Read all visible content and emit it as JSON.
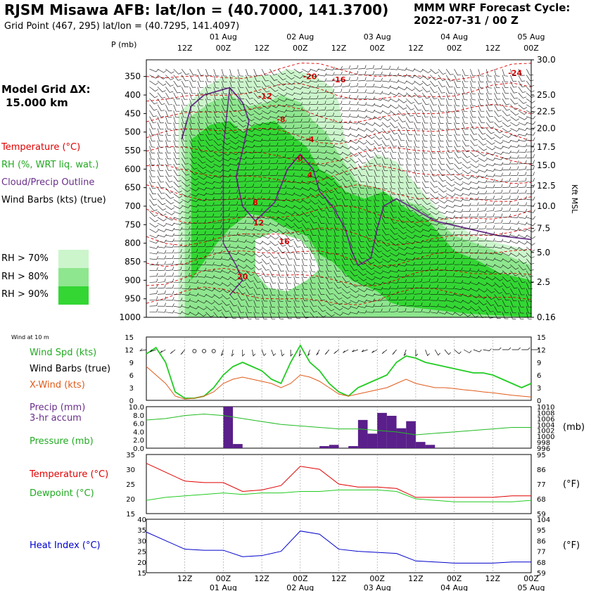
{
  "header": {
    "title": "RJSM Misawa AFB:  lat/lon = (40.7000, 141.3700)",
    "grid_point": "Grid Point (467, 295) lat/lon = (40.7295, 141.4097)",
    "cycle_line1": "MMM WRF Forecast Cycle:",
    "cycle_line2": "2022-07-31 / 00  Z",
    "model_grid_line1": "Model Grid ΔX:",
    "model_grid_line2": "15.000 km"
  },
  "time_axis": {
    "hours": [
      0,
      12,
      24,
      36,
      48,
      60,
      72,
      84,
      96,
      108,
      120
    ],
    "hour_labels": [
      "12Z",
      "00Z",
      "12Z",
      "00Z",
      "12Z",
      "00Z",
      "12Z",
      "00Z",
      "12Z",
      "00Z"
    ],
    "hour_label_positions": [
      12,
      24,
      36,
      48,
      60,
      72,
      84,
      96,
      108,
      120
    ],
    "date_labels": [
      "01 Aug",
      "02 Aug",
      "03 Aug",
      "04 Aug",
      "05 Aug"
    ],
    "date_label_positions": [
      24,
      48,
      72,
      96,
      120
    ],
    "xlim": [
      0,
      120
    ]
  },
  "legend": {
    "temperature": "Temperature (°C)",
    "rh": "RH (%, WRT liq. wat.)",
    "cloud": "Cloud/Precip Outline",
    "barbs": "Wind Barbs (kts) (true)",
    "rh70": "RH > 70%",
    "rh80": "RH > 80%",
    "rh90": "RH > 90%",
    "colors": {
      "rh70": "#ccf5cc",
      "rh80": "#8ee68e",
      "rh90": "#33d633",
      "temp": "#e00000",
      "cloud": "#6a2f8a"
    }
  },
  "panel_labels": {
    "wind_at_10m": "Wind at 10 m",
    "wind_spd": "Wind Spd (kts)",
    "wind_barbs": "Wind Barbs (true)",
    "x_wind": "X-Wind (kts)",
    "precip_1": "Precip (mm)",
    "precip_2": "3-hr accum",
    "pressure": "Pressure (mb)",
    "pressure_unit": "(mb)",
    "temperature": "Temperature (°C)",
    "dewpoint": "Dewpoint (°C)",
    "fahrenheit": "(°F)",
    "heat_index": "Heat Index (°C)",
    "p_axis": "P (mb)",
    "kft": "Kft MSL"
  },
  "chart_data": [
    {
      "type": "heatmap",
      "name_note": "",
      "y_ticks": [
        350,
        400,
        450,
        500,
        550,
        600,
        650,
        700,
        750,
        800,
        850,
        900,
        950,
        1000
      ],
      "y_right_ticks": [
        "30.0",
        "25.0",
        "22.5",
        "20.0",
        "17.5",
        "15.0",
        "12.5",
        "10.0",
        "7.5",
        "5.0",
        "2.5",
        "0.16"
      ],
      "y_right_positions": [
        305,
        400,
        445,
        490,
        540,
        590,
        645,
        700,
        760,
        825,
        905,
        1000
      ],
      "ylim": [
        1000,
        305
      ],
      "temp_labels": [
        {
          "text": "-24",
          "t": 115,
          "p": 340
        },
        {
          "text": "-20",
          "t": 51,
          "p": 350
        },
        {
          "text": "-16",
          "t": 60,
          "p": 358
        },
        {
          "text": "-12",
          "t": 37,
          "p": 403
        },
        {
          "text": "-8",
          "t": 42,
          "p": 465
        },
        {
          "text": "-4",
          "t": 51,
          "p": 520
        },
        {
          "text": "0",
          "t": 48,
          "p": 570
        },
        {
          "text": "4",
          "t": 51,
          "p": 615
        },
        {
          "text": "8",
          "t": 34,
          "p": 690
        },
        {
          "text": "12",
          "t": 35,
          "p": 745
        },
        {
          "text": "16",
          "t": 43,
          "p": 795
        },
        {
          "text": "20",
          "t": 30,
          "p": 890
        }
      ]
    },
    {
      "type": "line",
      "ylim": [
        0,
        15
      ],
      "y_ticks": [
        0,
        3,
        6,
        9,
        12,
        15
      ],
      "x": [
        0,
        3,
        6,
        9,
        12,
        15,
        18,
        21,
        24,
        27,
        30,
        33,
        36,
        39,
        42,
        45,
        48,
        51,
        54,
        57,
        60,
        63,
        66,
        69,
        72,
        75,
        78,
        81,
        84,
        87,
        90,
        93,
        96,
        99,
        102,
        105,
        108,
        111,
        114,
        117,
        120
      ],
      "series": [
        {
          "name": "Wind Spd (kts)",
          "color": "#22cc22",
          "values": [
            11,
            12.5,
            9,
            2,
            0.5,
            0.5,
            1,
            3,
            6,
            8,
            9,
            8,
            7,
            5,
            4,
            9,
            13,
            9,
            7,
            4,
            2,
            1,
            3,
            4,
            5,
            6,
            9,
            10.5,
            10,
            9,
            8.5,
            8,
            7.5,
            7,
            6.5,
            6.5,
            6,
            5,
            4,
            3,
            4
          ]
        },
        {
          "name": "X-Wind (kts)",
          "color": "#e05a1a",
          "values": [
            8,
            6,
            4,
            1,
            0.3,
            0.5,
            1,
            2,
            4,
            5,
            5.5,
            5,
            4.5,
            4,
            3,
            4,
            6,
            5.5,
            4.5,
            3,
            1.5,
            1,
            1.5,
            2,
            2.5,
            3,
            4,
            5,
            4,
            3.5,
            3,
            3,
            2.8,
            2.5,
            2.3,
            2,
            1.8,
            1.5,
            1.2,
            1,
            0.8
          ]
        }
      ],
      "barb_dirs": [
        260,
        250,
        240,
        230,
        220,
        0,
        0,
        0,
        200,
        190,
        180,
        170,
        160,
        160,
        170,
        180,
        190,
        200,
        210,
        220,
        230,
        240,
        250,
        250,
        240,
        230,
        220,
        200,
        180,
        160,
        150,
        140,
        130,
        120,
        110,
        100,
        90,
        90,
        90,
        90,
        90
      ]
    },
    {
      "type": "bar",
      "ylim": [
        0,
        10
      ],
      "y_ticks": [
        "0.0",
        "2.0",
        "4.0",
        "6.0",
        "8.0",
        "10.0"
      ],
      "y_right_ticks": [
        "996",
        "998",
        "1000",
        "1002",
        "1004",
        "1006",
        "1008",
        "1010"
      ],
      "pressure_ylim": [
        996,
        1010
      ],
      "bars": [
        {
          "t": 24,
          "v": 10
        },
        {
          "t": 27,
          "v": 1
        },
        {
          "t": 54,
          "v": 0.5
        },
        {
          "t": 57,
          "v": 0.8
        },
        {
          "t": 63,
          "v": 0.5
        },
        {
          "t": 66,
          "v": 6.8
        },
        {
          "t": 69,
          "v": 3.5
        },
        {
          "t": 72,
          "v": 8.5
        },
        {
          "t": 75,
          "v": 7.8
        },
        {
          "t": 78,
          "v": 4.8
        },
        {
          "t": 81,
          "v": 6.5
        },
        {
          "t": 84,
          "v": 1.5
        },
        {
          "t": 87,
          "v": 0.8
        }
      ],
      "pressure": {
        "name": "Pressure (mb)",
        "color": "#22bb22",
        "x": [
          0,
          6,
          12,
          18,
          24,
          30,
          36,
          42,
          48,
          54,
          60,
          66,
          72,
          78,
          84,
          90,
          96,
          102,
          108,
          114,
          120
        ],
        "values": [
          1005.5,
          1006,
          1007,
          1007.5,
          1007,
          1006,
          1005,
          1004,
          1003.5,
          1003,
          1002.5,
          1002.5,
          1002,
          1001.5,
          1000.5,
          1001,
          1001.5,
          1002,
          1002.5,
          1003,
          1003
        ]
      }
    },
    {
      "type": "line",
      "ylim": [
        15,
        35
      ],
      "y_ticks": [
        15,
        20,
        25,
        30,
        35
      ],
      "y_right_ticks": [
        "59",
        "68",
        "77",
        "86",
        "95"
      ],
      "x": [
        0,
        6,
        12,
        18,
        24,
        30,
        36,
        42,
        48,
        54,
        60,
        66,
        72,
        78,
        84,
        90,
        96,
        102,
        108,
        114,
        120
      ],
      "series": [
        {
          "name": "Temperature (°C)",
          "color": "#e00000",
          "values": [
            32,
            29,
            26,
            25.5,
            25.5,
            22.5,
            23,
            24.5,
            31,
            30,
            25,
            24,
            24,
            23.5,
            20.5,
            20.5,
            20.5,
            20.5,
            20.5,
            21,
            21
          ]
        },
        {
          "name": "Dewpoint (°C)",
          "color": "#22cc22",
          "values": [
            19.5,
            20.5,
            21,
            21.5,
            22,
            21.5,
            22,
            22,
            22.5,
            22.5,
            23,
            23,
            23,
            22.5,
            20,
            19.5,
            19,
            19,
            19,
            19,
            19.5
          ]
        }
      ]
    },
    {
      "type": "line",
      "ylim": [
        15,
        40
      ],
      "y_ticks": [
        15,
        20,
        25,
        30,
        35,
        40
      ],
      "y_right_ticks": [
        "59",
        "68",
        "77",
        "86",
        "95",
        "104"
      ],
      "x": [
        0,
        6,
        12,
        18,
        24,
        30,
        36,
        42,
        48,
        54,
        60,
        66,
        72,
        78,
        84,
        90,
        96,
        102,
        108,
        114,
        120
      ],
      "series": [
        {
          "name": "Heat Index (°C)",
          "color": "#0000cc",
          "values": [
            34,
            30,
            26,
            25.5,
            25.5,
            22.5,
            23,
            25,
            34.5,
            33,
            26,
            25,
            24.5,
            24,
            20.5,
            20,
            19.5,
            19.5,
            19.5,
            20,
            20
          ]
        }
      ]
    }
  ]
}
